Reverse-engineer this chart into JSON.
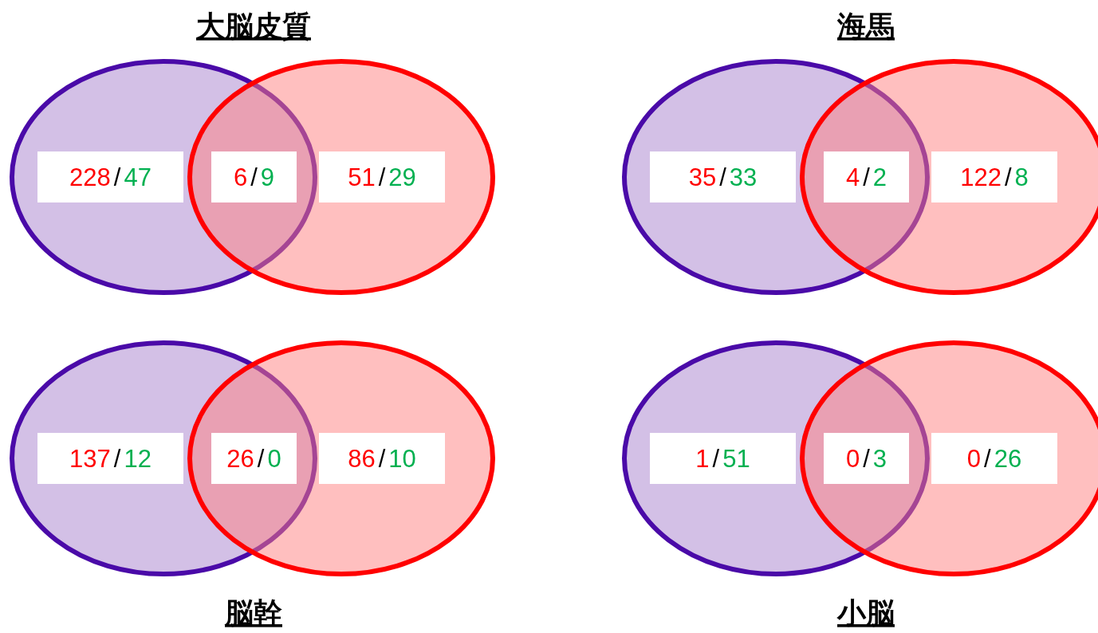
{
  "chart_data": [
    {
      "type": "other",
      "title": "大脳皮質",
      "categories": [
        null,
        null,
        null,
        null,
        null,
        null
      ],
      "data_labels": true,
      "annotations": [
        "/",
        "/",
        "/"
      ],
      "values": [
        228,
        47,
        6,
        9,
        51,
        29
      ],
      "colors": [
        "#ff0000",
        "#00b050",
        "#ff0000",
        "#00b050",
        "#ff0000",
        "#00b050"
      ]
    },
    {
      "type": "other",
      "title": "海馬",
      "categories": [
        null,
        null,
        null,
        null,
        null,
        null
      ],
      "data_labels": true,
      "annotations": [
        "/",
        "/",
        "/"
      ],
      "values": [
        35,
        33,
        4,
        2,
        122,
        8
      ],
      "colors": [
        "#ff0000",
        "#00b050",
        "#ff0000",
        "#00b050",
        "#ff0000",
        "#00b050"
      ]
    },
    {
      "type": "other",
      "title": "脳幹",
      "categories": [
        null,
        null,
        null,
        null,
        null,
        null
      ],
      "data_labels": true,
      "annotations": [
        "/",
        "/",
        "/"
      ],
      "values": [
        137,
        12,
        26,
        0,
        86,
        10
      ],
      "colors": [
        "#ff0000",
        "#00b050",
        "#ff0000",
        "#00b050",
        "#ff0000",
        "#00b050"
      ]
    },
    {
      "type": "other",
      "title": "小脳",
      "categories": [
        null,
        null,
        null,
        null,
        null,
        null
      ],
      "data_labels": true,
      "annotations": [
        "/",
        "/",
        "/"
      ],
      "values": [
        1,
        51,
        0,
        3,
        0,
        26
      ],
      "colors": [
        "#ff0000",
        "#00b050",
        "#ff0000",
        "#00b050",
        "#ff0000",
        "#00b050"
      ]
    }
  ]
}
